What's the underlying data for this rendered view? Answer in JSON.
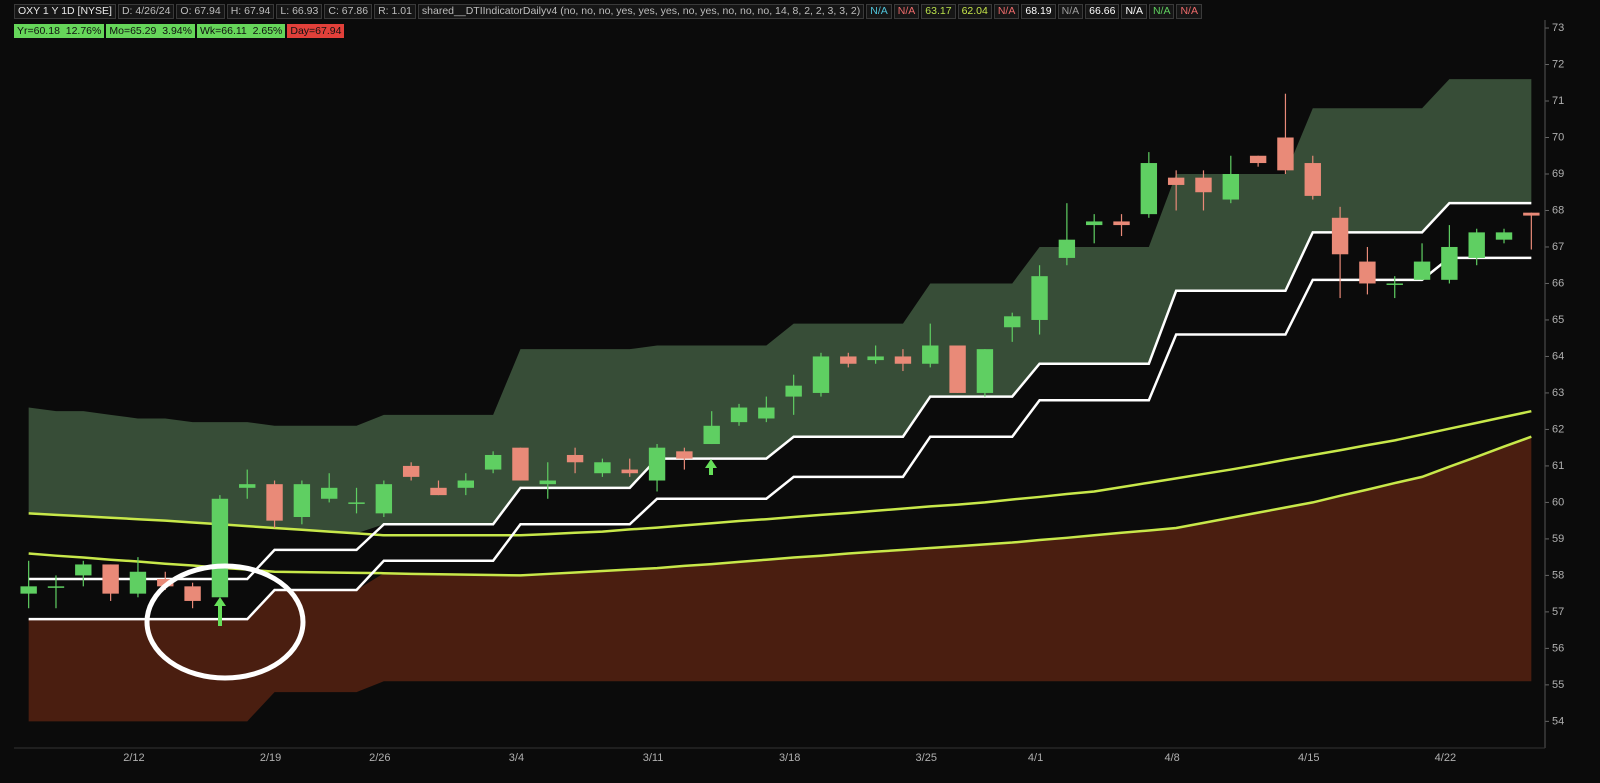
{
  "header": {
    "items": [
      {
        "text": "OXY 1 Y 1D [NYSE]",
        "color": "#e8e8e8"
      },
      {
        "text": "D: 4/26/24",
        "color": "#bdbdbd"
      },
      {
        "text": "O: 67.94",
        "color": "#bdbdbd"
      },
      {
        "text": "H: 67.94",
        "color": "#bdbdbd"
      },
      {
        "text": "L: 66.93",
        "color": "#bdbdbd"
      },
      {
        "text": "C: 67.86",
        "color": "#bdbdbd"
      },
      {
        "text": "R: 1.01",
        "color": "#bdbdbd"
      },
      {
        "text": "shared__DTIIndicatorDailyv4 (no, no, no, yes, yes, yes, no, yes, no, no, no, 14, 8, 2, 2, 3, 3, 2)",
        "color": "#bdbdbd"
      },
      {
        "text": "N/A",
        "color": "#4fc3d9"
      },
      {
        "text": "N/A",
        "color": "#ef6b6b"
      },
      {
        "text": "63.17",
        "color": "#b8e04a"
      },
      {
        "text": "62.04",
        "color": "#c8e84a"
      },
      {
        "text": "N/A",
        "color": "#ef6b6b"
      },
      {
        "text": "68.19",
        "color": "#ffffff"
      },
      {
        "text": "N/A",
        "color": "#9e9e9e"
      },
      {
        "text": "66.66",
        "color": "#ffffff"
      },
      {
        "text": "N/A",
        "color": "#ffffff"
      },
      {
        "text": "N/A",
        "color": "#5ecf5e"
      },
      {
        "text": "N/A",
        "color": "#ef6b6b"
      }
    ],
    "badges": [
      {
        "text": "Yr=60.18  12.76%",
        "background": "#66d65a"
      },
      {
        "text": "Mo=65.29  3.94%",
        "background": "#66d65a"
      },
      {
        "text": "Wk=66.11  2.65%",
        "background": "#66d65a"
      },
      {
        "text": "Day=67.94",
        "background": "#e2403a"
      }
    ]
  },
  "chart_data": {
    "type": "candlestick",
    "categories": [
      null,
      null,
      null,
      null,
      "2/12",
      null,
      null,
      null,
      null,
      "2/19",
      null,
      null,
      null,
      "2/26",
      null,
      null,
      null,
      null,
      "3/4",
      null,
      null,
      null,
      null,
      "3/11",
      null,
      null,
      null,
      null,
      "3/18",
      null,
      null,
      null,
      null,
      "3/25",
      null,
      null,
      null,
      "4/1",
      null,
      null,
      null,
      null,
      "4/8",
      null,
      null,
      null,
      null,
      "4/15",
      null,
      null,
      null,
      null,
      "4/22",
      null,
      null,
      null
    ],
    "open": [
      57.5,
      57.7,
      58.0,
      58.3,
      57.5,
      57.9,
      57.7,
      57.4,
      60.4,
      60.5,
      59.6,
      60.1,
      60.0,
      59.7,
      61.0,
      60.4,
      60.4,
      60.9,
      61.5,
      60.5,
      61.3,
      60.8,
      60.9,
      60.6,
      61.4,
      61.6,
      62.2,
      62.3,
      62.9,
      63.0,
      64.0,
      63.9,
      64.0,
      63.8,
      64.3,
      63.0,
      64.8,
      65.0,
      66.7,
      67.6,
      67.7,
      67.9,
      68.9,
      68.9,
      68.3,
      69.5,
      70.0,
      69.3,
      67.8,
      66.6,
      66.0,
      66.1,
      66.1,
      66.7,
      67.2,
      67.94
    ],
    "high": [
      58.4,
      58.0,
      58.4,
      58.3,
      58.5,
      58.1,
      57.8,
      60.2,
      60.9,
      60.6,
      60.6,
      60.8,
      60.4,
      60.6,
      61.1,
      60.6,
      60.8,
      61.4,
      61.5,
      61.1,
      61.5,
      61.2,
      61.2,
      61.6,
      61.5,
      62.5,
      62.7,
      62.9,
      63.5,
      64.1,
      64.1,
      64.3,
      64.2,
      64.9,
      64.3,
      64.2,
      65.2,
      66.5,
      68.2,
      67.9,
      67.9,
      69.6,
      69.1,
      69.1,
      69.5,
      69.5,
      71.2,
      69.5,
      68.1,
      67.0,
      66.2,
      67.1,
      67.6,
      67.5,
      67.5,
      67.94
    ],
    "low": [
      57.1,
      57.1,
      57.7,
      57.3,
      57.4,
      57.6,
      57.1,
      57.4,
      60.1,
      59.3,
      59.4,
      60.0,
      59.7,
      59.6,
      60.6,
      60.2,
      60.2,
      60.8,
      60.6,
      60.1,
      60.8,
      60.7,
      60.7,
      60.3,
      60.9,
      61.6,
      62.1,
      62.2,
      62.4,
      62.9,
      63.7,
      63.8,
      63.6,
      63.7,
      63.0,
      62.9,
      64.4,
      64.6,
      66.5,
      67.1,
      67.3,
      67.8,
      68.0,
      68.0,
      68.2,
      69.2,
      69.0,
      68.3,
      65.6,
      65.7,
      65.6,
      66.1,
      66.0,
      66.5,
      67.1,
      66.93
    ],
    "close": [
      57.7,
      57.7,
      58.3,
      57.5,
      58.1,
      57.7,
      57.3,
      60.1,
      60.5,
      59.5,
      60.5,
      60.4,
      60.0,
      60.5,
      60.7,
      60.2,
      60.6,
      61.3,
      60.6,
      60.6,
      61.1,
      61.1,
      60.8,
      61.5,
      61.2,
      62.1,
      62.6,
      62.6,
      63.2,
      64.0,
      63.8,
      64.0,
      63.8,
      64.3,
      63.0,
      64.2,
      65.1,
      66.2,
      67.2,
      67.7,
      67.6,
      69.3,
      68.7,
      68.5,
      69.0,
      69.3,
      69.1,
      68.4,
      66.8,
      66.0,
      66.0,
      66.6,
      67.0,
      67.4,
      67.4,
      67.86
    ],
    "up_color": "#5fcf62",
    "down_color": "#e98a78",
    "ylim": [
      53.27,
      73.22
    ],
    "yticks": [
      54,
      55,
      56,
      57,
      58,
      59,
      60,
      61,
      62,
      63,
      64,
      65,
      66,
      67,
      68,
      69,
      70,
      71,
      72,
      73
    ],
    "bands": {
      "top": [
        62.6,
        62.5,
        62.5,
        62.4,
        62.3,
        62.3,
        62.2,
        62.2,
        62.2,
        62.1,
        62.1,
        62.1,
        62.1,
        62.4,
        62.4,
        62.4,
        62.4,
        62.4,
        64.2,
        64.2,
        64.2,
        64.2,
        64.2,
        64.3,
        64.3,
        64.3,
        64.3,
        64.3,
        64.9,
        64.9,
        64.9,
        64.9,
        64.9,
        66.0,
        66.0,
        66.0,
        66.0,
        67.0,
        67.0,
        67.0,
        67.0,
        67.0,
        69.0,
        69.0,
        69.0,
        69.0,
        69.0,
        70.8,
        70.8,
        70.8,
        70.8,
        70.8,
        71.6,
        71.6,
        71.6,
        71.6
      ],
      "upper_line": [
        57.9,
        57.9,
        57.9,
        57.9,
        57.9,
        57.9,
        57.9,
        57.9,
        57.9,
        58.7,
        58.7,
        58.7,
        58.7,
        59.4,
        59.4,
        59.4,
        59.4,
        59.4,
        60.4,
        60.4,
        60.4,
        60.4,
        60.4,
        61.2,
        61.2,
        61.2,
        61.2,
        61.2,
        61.8,
        61.8,
        61.8,
        61.8,
        61.8,
        62.9,
        62.9,
        62.9,
        62.9,
        63.8,
        63.8,
        63.8,
        63.8,
        63.8,
        65.8,
        65.8,
        65.8,
        65.8,
        65.8,
        67.4,
        67.4,
        67.4,
        67.4,
        67.4,
        68.2,
        68.2,
        68.2,
        68.2
      ],
      "lower_line": [
        56.8,
        56.8,
        56.8,
        56.8,
        56.8,
        56.8,
        56.8,
        56.8,
        56.8,
        57.6,
        57.6,
        57.6,
        57.6,
        58.4,
        58.4,
        58.4,
        58.4,
        58.4,
        59.4,
        59.4,
        59.4,
        59.4,
        59.4,
        60.1,
        60.1,
        60.1,
        60.1,
        60.1,
        60.7,
        60.7,
        60.7,
        60.7,
        60.7,
        61.8,
        61.8,
        61.8,
        61.8,
        62.8,
        62.8,
        62.8,
        62.8,
        62.8,
        64.6,
        64.6,
        64.6,
        64.6,
        64.6,
        66.1,
        66.1,
        66.1,
        66.1,
        66.1,
        66.7,
        66.7,
        66.7,
        66.7
      ],
      "upper_ma": [
        59.7,
        59.66,
        59.62,
        59.58,
        59.54,
        59.5,
        59.45,
        59.4,
        59.35,
        59.3,
        59.25,
        59.2,
        59.15,
        59.1,
        59.1,
        59.1,
        59.1,
        59.1,
        59.1,
        59.13,
        59.17,
        59.2,
        59.26,
        59.31,
        59.37,
        59.43,
        59.49,
        59.54,
        59.6,
        59.66,
        59.71,
        59.77,
        59.83,
        59.89,
        59.94,
        60.0,
        60.08,
        60.15,
        60.23,
        60.3,
        60.42,
        60.54,
        60.66,
        60.78,
        60.9,
        61.03,
        61.17,
        61.3,
        61.43,
        61.57,
        61.7,
        61.86,
        62.02,
        62.18,
        62.34,
        62.5
      ],
      "lower_ma": [
        58.6,
        58.54,
        58.49,
        58.43,
        58.38,
        58.32,
        58.27,
        58.21,
        58.16,
        58.1,
        58.09,
        58.08,
        58.07,
        58.06,
        58.04,
        58.03,
        58.02,
        58.01,
        58.0,
        58.04,
        58.08,
        58.12,
        58.16,
        58.2,
        58.26,
        58.31,
        58.37,
        58.43,
        58.49,
        58.54,
        58.6,
        58.65,
        58.7,
        58.75,
        58.8,
        58.85,
        58.9,
        58.97,
        59.03,
        59.1,
        59.17,
        59.23,
        59.3,
        59.44,
        59.58,
        59.72,
        59.86,
        60.0,
        60.18,
        60.35,
        60.53,
        60.7,
        60.98,
        61.25,
        61.53,
        61.8
      ],
      "bottom": [
        54.0,
        54.0,
        54.0,
        54.0,
        54.0,
        54.0,
        54.0,
        54.0,
        54.0,
        54.8,
        54.8,
        54.8,
        54.8,
        55.1,
        55.1,
        55.1,
        55.1,
        55.1,
        55.1,
        55.1,
        55.1,
        55.1,
        55.1,
        55.1,
        55.1,
        55.1,
        55.1,
        55.1,
        55.1,
        55.1,
        55.1,
        55.1,
        55.1,
        55.1,
        55.1,
        55.1,
        55.1,
        55.1,
        55.1,
        55.1,
        55.1,
        55.1,
        55.1,
        55.1,
        55.1,
        55.1,
        55.1,
        55.1,
        55.1,
        55.1,
        55.1,
        55.1,
        55.1,
        55.1,
        55.1,
        55.1
      ],
      "line_color": "#ffffff",
      "ma_color": "#c8e84a",
      "top_color": "#374d37",
      "bottom_color": "#4a1e10"
    }
  }
}
